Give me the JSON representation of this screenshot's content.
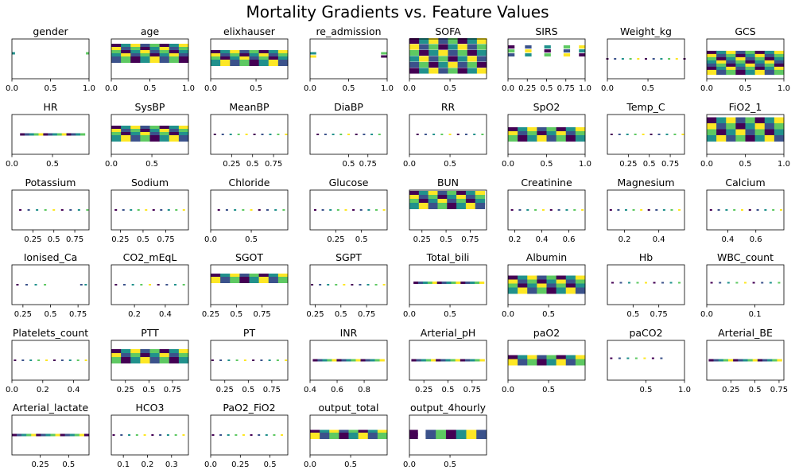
{
  "title": "Mortality Gradients vs. Feature Values",
  "colors": {
    "viridis": [
      "#440154",
      "#3b528b",
      "#21918c",
      "#5ec962",
      "#fde725"
    ],
    "frame": "#000000"
  },
  "chart_data": [
    {
      "type": "heatmap",
      "title": "gender",
      "xticks": [
        0.0,
        0.5,
        1.0
      ],
      "xlim": [
        0.0,
        1.0
      ],
      "style": "ticks",
      "rows": [
        0.36
      ],
      "cells": [
        [
          0.0,
          0.04
        ],
        [
          0.96,
          1.0
        ]
      ]
    },
    {
      "type": "heatmap",
      "title": "age",
      "xticks": [
        0.0,
        0.5,
        1.0
      ],
      "xlim": [
        0.0,
        1.0
      ],
      "style": "dense",
      "rows": [
        0.2,
        0.28,
        0.36,
        0.44,
        0.52
      ],
      "cells": [
        [
          0.0,
          1.0
        ]
      ]
    },
    {
      "type": "heatmap",
      "title": "elixhauser",
      "xticks": [
        0.0,
        0.5
      ],
      "xlim": [
        0.0,
        0.85
      ],
      "style": "dense",
      "rows": [
        0.36,
        0.44,
        0.52,
        0.6
      ],
      "cells": [
        [
          0.0,
          0.85
        ]
      ]
    },
    {
      "type": "heatmap",
      "title": "re_admission",
      "xticks": [
        0.0,
        0.5,
        1.0
      ],
      "xlim": [
        0.0,
        1.0
      ],
      "style": "ticks",
      "rows": [
        0.36,
        0.44
      ],
      "cells": [
        [
          0.0,
          0.08
        ],
        [
          0.92,
          1.0
        ]
      ]
    },
    {
      "type": "heatmap",
      "title": "SOFA",
      "xticks": [
        0.0,
        0.5
      ],
      "xlim": [
        0.0,
        0.95
      ],
      "style": "dense",
      "rows": [
        0.05,
        0.2,
        0.35,
        0.5,
        0.65,
        0.8
      ],
      "cells": [
        [
          0.0,
          0.95
        ]
      ]
    },
    {
      "type": "heatmap",
      "title": "SIRS",
      "xticks": [
        0.0,
        0.25,
        0.5,
        0.75,
        1.0
      ],
      "xlim": [
        0.0,
        1.0
      ],
      "style": "blocks",
      "rows": [
        0.2,
        0.3,
        0.4
      ],
      "cells": [
        [
          0.0,
          0.08
        ],
        [
          0.22,
          0.3
        ],
        [
          0.47,
          0.55
        ],
        [
          0.72,
          0.8
        ],
        [
          0.92,
          1.0
        ]
      ]
    },
    {
      "type": "heatmap",
      "title": "Weight_kg",
      "xticks": [
        0.0,
        0.5
      ],
      "xlim": [
        0.0,
        0.95
      ],
      "style": "dots",
      "rows": [
        0.5
      ],
      "cells": [
        [
          0.0,
          0.95
        ]
      ]
    },
    {
      "type": "heatmap",
      "title": "GCS",
      "xticks": [
        0.0,
        0.5,
        1.0
      ],
      "xlim": [
        0.0,
        1.0
      ],
      "style": "dense",
      "rows": [
        0.36,
        0.44,
        0.52,
        0.6,
        0.68,
        0.76,
        0.84
      ],
      "cells": [
        [
          0.0,
          1.0
        ]
      ]
    },
    {
      "type": "heatmap",
      "title": "HR",
      "xticks": [
        0.0,
        0.5
      ],
      "xlim": [
        0.0,
        0.95
      ],
      "style": "line",
      "rows": [
        0.5
      ],
      "cells": [
        [
          0.1,
          0.9
        ]
      ]
    },
    {
      "type": "heatmap",
      "title": "SysBP",
      "xticks": [
        0.0,
        0.5
      ],
      "xlim": [
        0.0,
        0.95
      ],
      "style": "dense",
      "rows": [
        0.36,
        0.44,
        0.52,
        0.6
      ],
      "cells": [
        [
          0.0,
          0.95
        ]
      ]
    },
    {
      "type": "heatmap",
      "title": "MeanBP",
      "xticks": [
        0.25,
        0.5,
        0.75
      ],
      "xlim": [
        0.0,
        0.92
      ],
      "style": "dots",
      "rows": [
        0.5
      ],
      "cells": [
        [
          0.05,
          0.9
        ]
      ]
    },
    {
      "type": "heatmap",
      "title": "DiaBP",
      "xticks": [
        0.5,
        0.75
      ],
      "xlim": [
        0.0,
        1.0
      ],
      "style": "dots",
      "rows": [
        0.5
      ],
      "cells": [
        [
          0.1,
          0.9
        ]
      ]
    },
    {
      "type": "heatmap",
      "title": "RR",
      "xticks": [
        0.0,
        0.5
      ],
      "xlim": [
        0.0,
        0.95
      ],
      "style": "dots",
      "rows": [
        0.5
      ],
      "cells": [
        [
          0.1,
          0.9
        ]
      ]
    },
    {
      "type": "heatmap",
      "title": "SpO2",
      "xticks": [
        0.0,
        0.5,
        1.0
      ],
      "xlim": [
        0.0,
        1.0
      ],
      "style": "dense",
      "rows": [
        0.4,
        0.5,
        0.6
      ],
      "cells": [
        [
          0.0,
          1.0
        ]
      ]
    },
    {
      "type": "heatmap",
      "title": "Temp_C",
      "xticks": [
        0.25,
        0.5,
        0.75
      ],
      "xlim": [
        0.0,
        0.92
      ],
      "style": "dots",
      "rows": [
        0.5
      ],
      "cells": [
        [
          0.05,
          0.9
        ]
      ]
    },
    {
      "type": "heatmap",
      "title": "FiO2_1",
      "xticks": [
        0.0,
        0.5,
        1.0
      ],
      "xlim": [
        0.0,
        1.0
      ],
      "style": "dense",
      "rows": [
        0.15,
        0.3,
        0.45,
        0.6
      ],
      "cells": [
        [
          0.0,
          1.0
        ]
      ]
    },
    {
      "type": "heatmap",
      "title": "Potassium",
      "xticks": [
        0.25,
        0.5,
        0.75
      ],
      "xlim": [
        0.0,
        0.92
      ],
      "style": "dots",
      "rows": [
        0.5
      ],
      "cells": [
        [
          0.1,
          0.9
        ]
      ]
    },
    {
      "type": "heatmap",
      "title": "Sodium",
      "xticks": [
        0.25,
        0.5,
        0.75
      ],
      "xlim": [
        0.15,
        1.0
      ],
      "style": "dots",
      "rows": [
        0.5
      ],
      "cells": [
        [
          0.2,
          0.95
        ]
      ]
    },
    {
      "type": "heatmap",
      "title": "Chloride",
      "xticks": [
        0.0,
        0.5
      ],
      "xlim": [
        0.0,
        0.95
      ],
      "style": "dots",
      "rows": [
        0.5
      ],
      "cells": [
        [
          0.1,
          0.9
        ]
      ]
    },
    {
      "type": "heatmap",
      "title": "Glucose",
      "xticks": [
        0.25,
        0.5
      ],
      "xlim": [
        0.0,
        0.75
      ],
      "style": "dots",
      "rows": [
        0.5
      ],
      "cells": [
        [
          0.05,
          0.72
        ]
      ]
    },
    {
      "type": "heatmap",
      "title": "BUN",
      "xticks": [
        0.25,
        0.5,
        0.75
      ],
      "xlim": [
        0.12,
        0.92
      ],
      "style": "dense",
      "rows": [
        0.1,
        0.2,
        0.3,
        0.4
      ],
      "cells": [
        [
          0.12,
          0.9
        ]
      ]
    },
    {
      "type": "heatmap",
      "title": "Creatinine",
      "xticks": [
        0.2,
        0.4,
        0.6
      ],
      "xlim": [
        0.15,
        0.72
      ],
      "style": "dots",
      "rows": [
        0.5
      ],
      "cells": [
        [
          0.18,
          0.7
        ]
      ]
    },
    {
      "type": "heatmap",
      "title": "Magnesium",
      "xticks": [
        0.2,
        0.4
      ],
      "xlim": [
        0.1,
        0.55
      ],
      "style": "dots",
      "rows": [
        0.5
      ],
      "cells": [
        [
          0.12,
          0.52
        ]
      ]
    },
    {
      "type": "heatmap",
      "title": "Calcium",
      "xticks": [
        0.4,
        0.6
      ],
      "xlim": [
        0.25,
        0.8
      ],
      "style": "dots",
      "rows": [
        0.5
      ],
      "cells": [
        [
          0.28,
          0.78
        ]
      ]
    },
    {
      "type": "heatmap",
      "title": "Ionised_Ca",
      "xticks": [
        0.25,
        0.5,
        0.75
      ],
      "xlim": [
        0.15,
        0.85
      ],
      "style": "dots",
      "rows": [
        0.5
      ],
      "cells": [
        [
          0.2,
          0.45
        ],
        [
          0.78,
          0.82
        ]
      ]
    },
    {
      "type": "heatmap",
      "title": "CO2_mEqL",
      "xticks": [
        0.2,
        0.4
      ],
      "xlim": [
        0.05,
        0.55
      ],
      "style": "dots",
      "rows": [
        0.5
      ],
      "cells": [
        [
          0.08,
          0.52
        ]
      ]
    },
    {
      "type": "heatmap",
      "title": "SGOT",
      "xticks": [
        0.25,
        0.5,
        0.75
      ],
      "xlim": [
        0.25,
        1.0
      ],
      "style": "dense",
      "rows": [
        0.3,
        0.38
      ],
      "cells": [
        [
          0.25,
          1.0
        ]
      ]
    },
    {
      "type": "heatmap",
      "title": "SGPT",
      "xticks": [
        0.25,
        0.5,
        0.75
      ],
      "xlim": [
        0.2,
        0.95
      ],
      "style": "dots",
      "rows": [
        0.5
      ],
      "cells": [
        [
          0.22,
          0.92
        ]
      ]
    },
    {
      "type": "heatmap",
      "title": "Total_bili",
      "xticks": [
        0.0,
        0.5
      ],
      "xlim": [
        0.0,
        0.95
      ],
      "style": "line",
      "rows": [
        0.45
      ],
      "cells": [
        [
          0.05,
          0.92
        ]
      ]
    },
    {
      "type": "heatmap",
      "title": "Albumin",
      "xticks": [
        0.0,
        0.5
      ],
      "xlim": [
        0.0,
        0.95
      ],
      "style": "dense",
      "rows": [
        0.35,
        0.45,
        0.55,
        0.65
      ],
      "cells": [
        [
          0.0,
          0.95
        ]
      ]
    },
    {
      "type": "heatmap",
      "title": "Hb",
      "xticks": [
        0.5,
        0.75
      ],
      "xlim": [
        0.25,
        1.0
      ],
      "style": "dots",
      "rows": [
        0.45
      ],
      "cells": [
        [
          0.3,
          0.95
        ]
      ]
    },
    {
      "type": "heatmap",
      "title": "WBC_count",
      "xticks": [
        0.0,
        0.1
      ],
      "xlim": [
        0.0,
        0.16
      ],
      "style": "dots",
      "rows": [
        0.45
      ],
      "cells": [
        [
          0.01,
          0.15
        ]
      ]
    },
    {
      "type": "heatmap",
      "title": "Platelets_count",
      "xticks": [
        0.0,
        0.2,
        0.4
      ],
      "xlim": [
        0.0,
        0.5
      ],
      "style": "dots",
      "rows": [
        0.5
      ],
      "cells": [
        [
          0.02,
          0.48
        ]
      ]
    },
    {
      "type": "heatmap",
      "title": "PTT",
      "xticks": [
        0.25,
        0.5,
        0.75
      ],
      "xlim": [
        0.1,
        0.92
      ],
      "style": "dense",
      "rows": [
        0.3,
        0.4,
        0.5
      ],
      "cells": [
        [
          0.1,
          0.92
        ]
      ]
    },
    {
      "type": "heatmap",
      "title": "PT",
      "xticks": [
        0.25,
        0.5,
        0.75
      ],
      "xlim": [
        0.1,
        0.92
      ],
      "style": "dots",
      "rows": [
        0.5
      ],
      "cells": [
        [
          0.12,
          0.9
        ]
      ]
    },
    {
      "type": "heatmap",
      "title": "INR",
      "xticks": [
        0.4,
        0.6,
        0.8
      ],
      "xlim": [
        0.4,
        0.97
      ],
      "style": "line",
      "rows": [
        0.5
      ],
      "cells": [
        [
          0.42,
          0.95
        ]
      ]
    },
    {
      "type": "heatmap",
      "title": "Arterial_pH",
      "xticks": [
        0.25,
        0.5,
        0.75
      ],
      "xlim": [
        0.1,
        0.9
      ],
      "style": "line",
      "rows": [
        0.5
      ],
      "cells": [
        [
          0.12,
          0.88
        ]
      ]
    },
    {
      "type": "heatmap",
      "title": "paO2",
      "xticks": [
        0.0,
        0.5
      ],
      "xlim": [
        0.0,
        0.95
      ],
      "style": "dense",
      "rows": [
        0.45,
        0.55
      ],
      "cells": [
        [
          0.0,
          0.95
        ]
      ]
    },
    {
      "type": "heatmap",
      "title": "paCO2",
      "xticks": [
        0.5,
        1.0
      ],
      "xlim": [
        0.0,
        1.0
      ],
      "style": "dots",
      "rows": [
        0.45
      ],
      "cells": [
        [
          0.05,
          0.7
        ]
      ]
    },
    {
      "type": "heatmap",
      "title": "Arterial_BE",
      "xticks": [
        0.25,
        0.5,
        0.75
      ],
      "xlim": [
        0.0,
        0.8
      ],
      "style": "line",
      "rows": [
        0.5
      ],
      "cells": [
        [
          0.02,
          0.78
        ]
      ]
    },
    {
      "type": "heatmap",
      "title": "Arterial_lactate",
      "xticks": [
        0.25,
        0.5
      ],
      "xlim": [
        0.0,
        0.68
      ],
      "style": "line",
      "rows": [
        0.5
      ],
      "cells": [
        [
          0.0,
          0.68
        ]
      ]
    },
    {
      "type": "heatmap",
      "title": "HCO3",
      "xticks": [
        0.1,
        0.2,
        0.3
      ],
      "xlim": [
        0.05,
        0.37
      ],
      "style": "dots",
      "rows": [
        0.5
      ],
      "cells": [
        [
          0.06,
          0.35
        ]
      ]
    },
    {
      "type": "heatmap",
      "title": "PaO2_FiO2",
      "xticks": [
        0.0,
        0.25,
        0.5
      ],
      "xlim": [
        0.0,
        0.65
      ],
      "style": "dots",
      "rows": [
        0.5
      ],
      "cells": [
        [
          0.02,
          0.6
        ]
      ]
    },
    {
      "type": "heatmap",
      "title": "output_total",
      "xticks": [
        0.0,
        0.5
      ],
      "xlim": [
        0.0,
        0.95
      ],
      "style": "dense",
      "rows": [
        0.45,
        0.52
      ],
      "cells": [
        [
          0.0,
          0.95
        ]
      ]
    },
    {
      "type": "heatmap",
      "title": "output_4hourly",
      "xticks": [
        0.0,
        0.5
      ],
      "xlim": [
        0.0,
        0.95
      ],
      "style": "dense",
      "rows": [
        0.45,
        0.52
      ],
      "cells": [
        [
          0.0,
          0.1
        ],
        [
          0.2,
          0.95
        ]
      ]
    }
  ]
}
